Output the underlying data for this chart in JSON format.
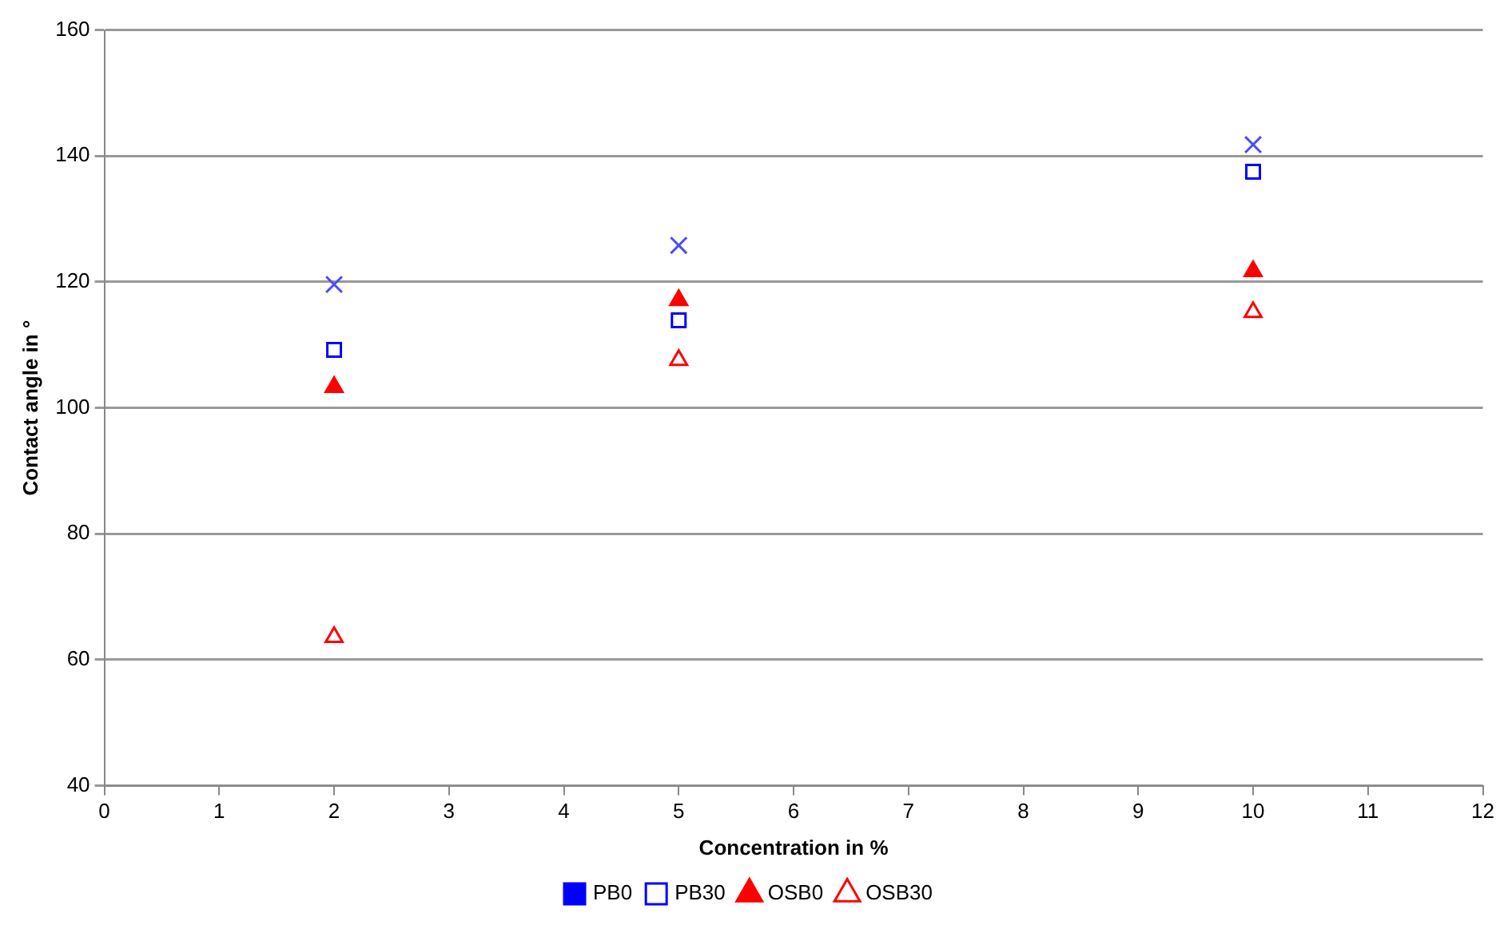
{
  "chart_data": {
    "type": "scatter",
    "xlabel": "Concentration in %",
    "ylabel": "Contact angle in °",
    "xlim": [
      0,
      12
    ],
    "xticks": [
      0,
      1,
      2,
      3,
      4,
      5,
      6,
      7,
      8,
      9,
      10,
      11,
      12
    ],
    "ylim": [
      40,
      160
    ],
    "yticks": [
      40,
      60,
      80,
      100,
      120,
      140,
      160
    ],
    "grid": "y",
    "legend": "bottom",
    "x": [
      2,
      5,
      10
    ],
    "series": [
      {
        "name": "PB0",
        "color": "#0000ff",
        "marker": "square",
        "values": [
          null,
          null,
          null
        ]
      },
      {
        "name": "PB30",
        "color": "#0000ff",
        "marker": "square-open",
        "values": [
          109.2,
          113.9,
          137.5
        ]
      },
      {
        "name": "OSB0",
        "color": "#ff0000",
        "marker": "triangle",
        "values": [
          103.3,
          117.1,
          121.7
        ]
      },
      {
        "name": "OSB30",
        "color": "#ff0000",
        "marker": "triangle-open",
        "values": [
          63.6,
          107.6,
          115.2
        ]
      },
      {
        "color": "#4a4aff",
        "marker": "cross",
        "values": [
          119.6,
          125.8,
          141.8
        ]
      }
    ]
  }
}
